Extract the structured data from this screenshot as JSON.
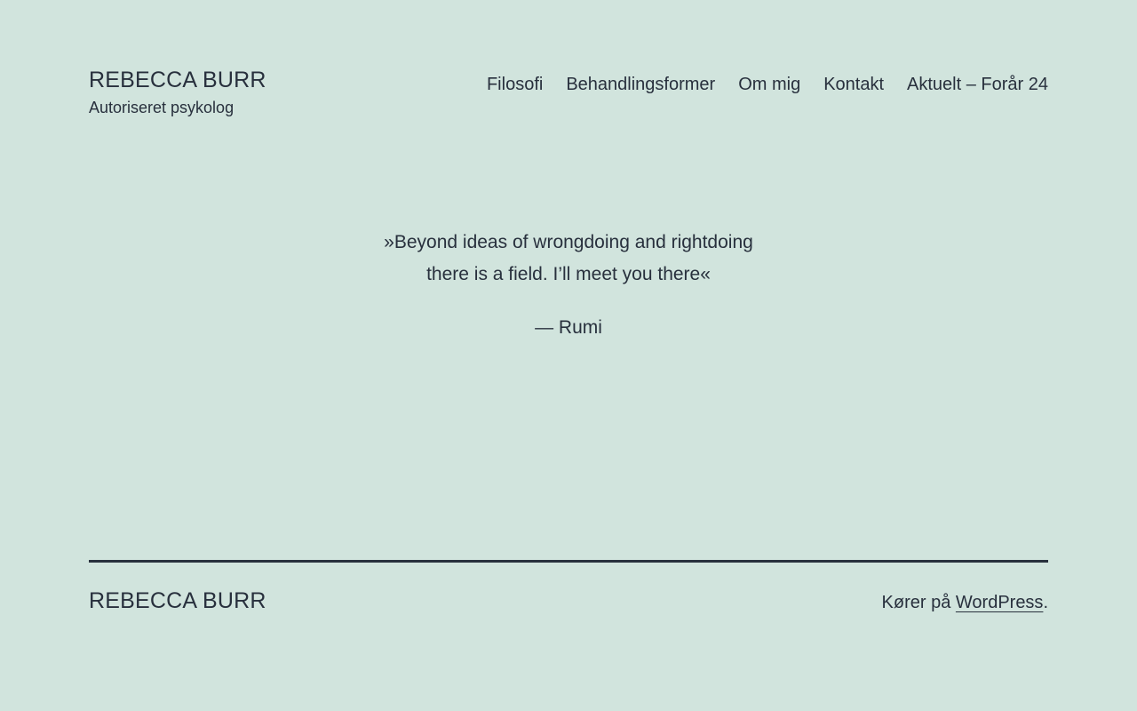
{
  "colors": {
    "background": "#d1e4dd",
    "text": "#28303d"
  },
  "header": {
    "site_title": "REBECCA BURR",
    "tagline": "Autoriseret psykolog",
    "nav": [
      {
        "label": "Filosofi"
      },
      {
        "label": "Behandlingsformer"
      },
      {
        "label": "Om mig"
      },
      {
        "label": "Kontakt"
      },
      {
        "label": "Aktuelt – Forår 24"
      }
    ]
  },
  "main": {
    "quote": {
      "lines": [
        "»Beyond ideas of wrongdoing and rightdoing",
        "there is a field. I’ll meet you there«"
      ],
      "attribution": "— Rumi"
    }
  },
  "footer": {
    "site_name": "REBECCA BURR",
    "powered_by_prefix": "Kører på ",
    "wordpress_label": "WordPress",
    "powered_by_suffix": "."
  }
}
